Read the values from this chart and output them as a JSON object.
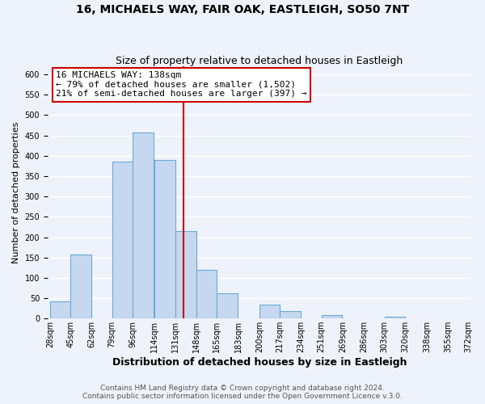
{
  "title": "16, MICHAELS WAY, FAIR OAK, EASTLEIGH, SO50 7NT",
  "subtitle": "Size of property relative to detached houses in Eastleigh",
  "xlabel": "Distribution of detached houses by size in Eastleigh",
  "ylabel": "Number of detached properties",
  "bar_left_edges": [
    28,
    45,
    62,
    79,
    96,
    114,
    131,
    148,
    165,
    183,
    200,
    217,
    234,
    251,
    269,
    286,
    303,
    320,
    338,
    355
  ],
  "bar_heights": [
    42,
    158,
    0,
    385,
    458,
    390,
    215,
    120,
    62,
    0,
    35,
    18,
    0,
    8,
    0,
    0,
    5,
    0,
    0,
    0
  ],
  "bin_width": 17,
  "bar_color": "#c5d8f0",
  "bar_edge_color": "#6aaad4",
  "tick_labels": [
    "28sqm",
    "45sqm",
    "62sqm",
    "79sqm",
    "96sqm",
    "114sqm",
    "131sqm",
    "148sqm",
    "165sqm",
    "183sqm",
    "200sqm",
    "217sqm",
    "234sqm",
    "251sqm",
    "269sqm",
    "286sqm",
    "303sqm",
    "320sqm",
    "338sqm",
    "355sqm",
    "372sqm"
  ],
  "vline_x": 138,
  "vline_color": "#cc0000",
  "annotation_title": "16 MICHAELS WAY: 138sqm",
  "annotation_line1": "← 79% of detached houses are smaller (1,502)",
  "annotation_line2": "21% of semi-detached houses are larger (397) →",
  "annotation_box_color": "#ffffff",
  "annotation_border_color": "#cc0000",
  "ylim": [
    0,
    620
  ],
  "yticks": [
    0,
    50,
    100,
    150,
    200,
    250,
    300,
    350,
    400,
    450,
    500,
    550,
    600
  ],
  "footer1": "Contains HM Land Registry data © Crown copyright and database right 2024.",
  "footer2": "Contains public sector information licensed under the Open Government Licence v.3.0.",
  "background_color": "#eef2fa",
  "grid_color": "#ffffff",
  "title_fontsize": 10,
  "subtitle_fontsize": 9,
  "xlabel_fontsize": 9,
  "ylabel_fontsize": 8,
  "tick_fontsize": 7,
  "footer_fontsize": 6.5,
  "annotation_fontsize": 8
}
